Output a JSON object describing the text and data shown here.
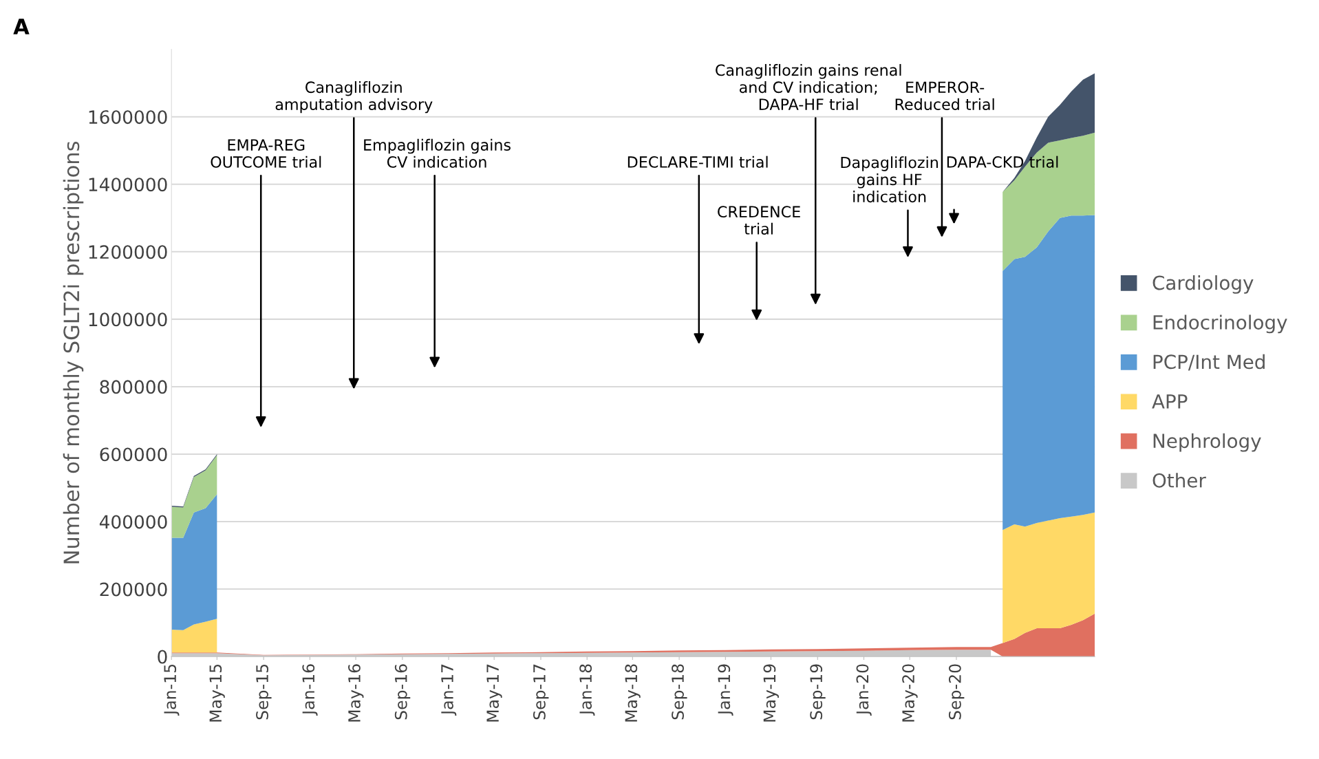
{
  "chart_data": {
    "type": "area",
    "stacked": true,
    "ylabel": "Number of monthly SGLT2i prescriptions",
    "x": [
      "2015-01",
      "2015-02",
      "2015-03",
      "2015-04",
      "2015-05",
      "2015-09",
      "2016-01",
      "2016-05",
      "2016-09",
      "2017-01",
      "2017-05",
      "2017-09",
      "2018-01",
      "2018-05",
      "2018-09",
      "2019-01",
      "2019-05",
      "2019-09",
      "2020-01",
      "2020-05",
      "2020-09",
      "2020-12",
      "2021-01",
      "2021-02",
      "2021-03",
      "2021-04",
      "2021-05",
      "2021-06",
      "2021-07",
      "2021-08",
      "2021-09"
    ],
    "series": [
      {
        "name": "Other",
        "color": "#c8c8c8",
        "values": [
          10000,
          10000,
          10000,
          10000,
          10000,
          4000,
          5000,
          6000,
          7000,
          8000,
          9000,
          10000,
          11000,
          12000,
          13000,
          14000,
          15000,
          16000,
          17000,
          19000,
          20000,
          20000,
          null,
          null,
          null,
          null,
          null,
          null,
          null,
          null,
          null
        ]
      },
      {
        "name": "Nephrology",
        "color": "#e07060",
        "values": [
          2000,
          2000,
          2000,
          2000,
          2000,
          1000,
          1000,
          1000,
          2000,
          2000,
          3000,
          3000,
          4000,
          4000,
          5000,
          5000,
          6000,
          6000,
          7000,
          7000,
          8000,
          8000,
          40000,
          52000,
          70000,
          84000,
          84000,
          84000,
          94000,
          108000,
          127000
        ]
      },
      {
        "name": "APP",
        "color": "#ffd966",
        "values": [
          68000,
          66000,
          83000,
          91000,
          100000,
          null,
          null,
          null,
          null,
          null,
          null,
          null,
          null,
          null,
          null,
          null,
          null,
          null,
          null,
          null,
          null,
          null,
          335000,
          340000,
          315000,
          312000,
          319000,
          326000,
          321000,
          312000,
          300000
        ]
      },
      {
        "name": "PCP/Int Med",
        "color": "#5b9bd5",
        "values": [
          272000,
          274000,
          332000,
          337000,
          369000,
          null,
          null,
          null,
          null,
          null,
          null,
          null,
          null,
          null,
          null,
          null,
          null,
          null,
          null,
          null,
          null,
          null,
          768000,
          786000,
          800000,
          817000,
          857000,
          890000,
          892000,
          887000,
          882000
        ]
      },
      {
        "name": "Endocrinology",
        "color": "#a9d18e",
        "values": [
          92000,
          90000,
          105000,
          112000,
          116000,
          null,
          null,
          null,
          null,
          null,
          null,
          null,
          null,
          null,
          null,
          null,
          null,
          null,
          null,
          null,
          null,
          null,
          234000,
          234000,
          267000,
          281000,
          263000,
          230000,
          230000,
          237000,
          244000
        ]
      },
      {
        "name": "Cardiology",
        "color": "#44546a",
        "values": [
          3000,
          3000,
          3000,
          3000,
          3000,
          null,
          null,
          null,
          null,
          null,
          null,
          null,
          null,
          null,
          null,
          null,
          null,
          null,
          null,
          null,
          null,
          null,
          0,
          7000,
          17000,
          45000,
          77000,
          105000,
          138000,
          166000,
          176000
        ]
      }
    ],
    "xlim": [
      "2015-01",
      "2021-09"
    ],
    "xticks": [
      {
        "value": "2015-01",
        "label": "Jan-15"
      },
      {
        "value": "2015-05",
        "label": "May-15"
      },
      {
        "value": "2015-09",
        "label": "Sep-15"
      },
      {
        "value": "2016-01",
        "label": "Jan-16"
      },
      {
        "value": "2016-05",
        "label": "May-16"
      },
      {
        "value": "2016-09",
        "label": "Sep-16"
      },
      {
        "value": "2017-01",
        "label": "Jan-17"
      },
      {
        "value": "2017-05",
        "label": "May-17"
      },
      {
        "value": "2017-09",
        "label": "Sep-17"
      },
      {
        "value": "2018-01",
        "label": "Jan-18"
      },
      {
        "value": "2018-05",
        "label": "May-18"
      },
      {
        "value": "2018-09",
        "label": "Sep-18"
      },
      {
        "value": "2019-01",
        "label": "Jan-19"
      },
      {
        "value": "2019-05",
        "label": "May-19"
      },
      {
        "value": "2019-09",
        "label": "Sep-19"
      },
      {
        "value": "2020-01",
        "label": "Jan-20"
      },
      {
        "value": "2020-05",
        "label": "May-20"
      },
      {
        "value": "2020-09",
        "label": "Sep-20"
      }
    ],
    "ylim": [
      0,
      1800000
    ],
    "yticks": [
      0,
      200000,
      400000,
      600000,
      800000,
      1000000,
      1200000,
      1400000,
      1600000
    ],
    "grid": "y",
    "legend": "right",
    "annotations": [
      "A",
      "EMPA-REG\nOUTCOME trial",
      "Canagliflozin\namputation advisory",
      "Empagliflozin gains\nCV indication",
      "DECLARE-TIMI trial",
      "CREDENCE\ntrial",
      "Canagliflozin gains renal\nand CV indication;\nDAPA-HF trial",
      "Dapagliflozin\ngains HF\nindication",
      "EMPEROR-\nReduced trial",
      "DAPA-CKD trial"
    ]
  }
}
